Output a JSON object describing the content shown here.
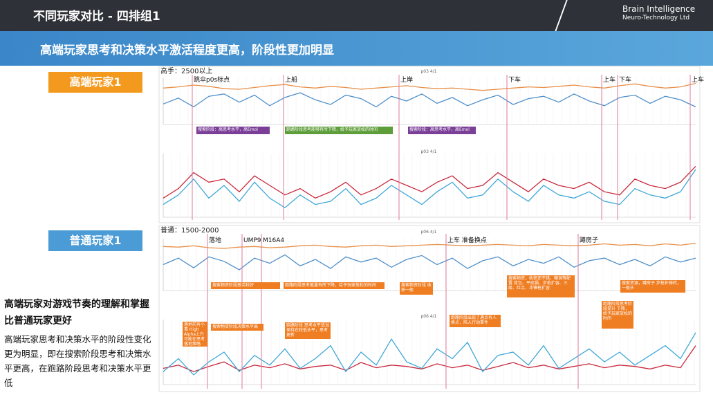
{
  "header": {
    "title": "不同玩家对比 - 四排组1",
    "logo_line1": "Brain Intelligence",
    "logo_line2": "Neuro-Technology Ltd"
  },
  "banner": "高端玩家思考和决策水平激活程度更高，阶段性更加明显",
  "labels": [
    "高端玩家1",
    "普通玩家1"
  ],
  "summary": {
    "heading": "高端玩家对游戏节奏的理解和掌握比普通玩家更好",
    "body": "高端玩家思考和决策水平的阶段性变化更为明显，即在搜索阶段思考和决策水平更高，在跑路阶段思考和决策水平更低"
  },
  "panels": [
    {
      "group": "高手：2500以上",
      "events": [
        "跳伞p0s标点",
        "上船",
        "上岸",
        "下车",
        "上车",
        "下车",
        "上车"
      ],
      "notes": [
        "搜索阶段：高思考水平，高Emol",
        "跑路阶段思考能够有所下降，给予玩家放松的时间",
        "搜索阶段：高思考水平，高Emol"
      ],
      "top": {
        "title": "p03 4/1",
        "ylim": [
          -0.4,
          0.4
        ],
        "series": [
          {
            "color": "#e8904a",
            "values": [
              0.22,
              0.24,
              0.27,
              0.25,
              0.21,
              0.2,
              0.23,
              0.26,
              0.28,
              0.24,
              0.22,
              0.25,
              0.23,
              0.2,
              0.22,
              0.24,
              0.26,
              0.23,
              0.21,
              0.22,
              0.2,
              0.18,
              0.2,
              0.22,
              0.24,
              0.23,
              0.25,
              0.27,
              0.24,
              0.22,
              0.26,
              0.29,
              0.25,
              0.22,
              0.24,
              0.3
            ]
          },
          {
            "color": "#4f8fc9",
            "values": [
              -0.05,
              0.05,
              -0.1,
              0.08,
              0.12,
              -0.02,
              0.1,
              -0.08,
              0.06,
              0.14,
              0.02,
              -0.06,
              0.1,
              0.04,
              -0.1,
              0.08,
              0.0,
              0.12,
              -0.04,
              0.06,
              -0.08,
              0.02,
              0.1,
              -0.06,
              0.04,
              0.08,
              -0.02,
              0.12,
              0.0,
              -0.08,
              0.06,
              0.1,
              -0.04,
              0.08,
              0.02,
              -0.1
            ]
          }
        ]
      },
      "bottom": {
        "title": "p03 4/1",
        "ylim": [
          0,
          100
        ],
        "series": [
          {
            "color": "#c8283c",
            "values": [
              30,
              45,
              70,
              55,
              60,
              40,
              65,
              50,
              35,
              45,
              30,
              40,
              55,
              35,
              45,
              60,
              50,
              40,
              55,
              65,
              45,
              50,
              70,
              55,
              40,
              60,
              50,
              45,
              55,
              40,
              35,
              60,
              50,
              45,
              55,
              80
            ]
          },
          {
            "color": "#3fa7d8",
            "values": [
              20,
              35,
              60,
              30,
              50,
              25,
              55,
              30,
              15,
              35,
              20,
              25,
              45,
              20,
              30,
              50,
              35,
              20,
              40,
              55,
              30,
              35,
              60,
              40,
              25,
              50,
              35,
              30,
              40,
              25,
              20,
              45,
              35,
              30,
              40,
              75
            ]
          }
        ]
      }
    },
    {
      "group": "普通：1500-2000",
      "events": [
        "落地",
        "UMP9",
        "M16A4",
        "上车 准备换点",
        "蹲房子"
      ],
      "notes": [
        "搜索物资阶段激活较好",
        "跑路阶段思考能量有所下降，给予玩家放松的时间",
        "搜索物资阶段 收获一般",
        "搜索物资，收获还不错，嘲讽等配置 背包、平底锅、步枪扩容、三级、红点、冲锋枪扩容",
        "搜索资源，蹲房子 步枪补弹药，一般头",
        "落地前有小事 High Alpha上升 可能在思考落地策略",
        "搜索物资阶段决策水平高",
        "跑路阶段 思考水平适当 保持在较低水平，思考更新",
        "跑路阶段出现了遇点有人换点，陷入行动事件",
        "跑路阶段思考阶段提升 下降，给予玩家放松的时间"
      ],
      "top": {
        "title": "p06 4/1",
        "ylim": [
          -0.4,
          0.4
        ],
        "series": [
          {
            "color": "#e8904a",
            "values": [
              0.28,
              0.27,
              0.29,
              0.26,
              0.25,
              0.27,
              0.28,
              0.26,
              0.27,
              0.29,
              0.3,
              0.28,
              0.27,
              0.29,
              0.3,
              0.28,
              0.29,
              0.3,
              0.31,
              0.3,
              0.29,
              0.3,
              0.31,
              0.3,
              0.29,
              0.31,
              0.3,
              0.29,
              0.3,
              0.32,
              0.3,
              0.31,
              0.29,
              0.32,
              0.3,
              0.33
            ]
          },
          {
            "color": "#4f8fc9",
            "values": [
              0.0,
              0.1,
              -0.05,
              0.12,
              0.05,
              -0.08,
              0.1,
              0.02,
              0.15,
              -0.02,
              0.08,
              -0.06,
              0.12,
              0.04,
              0.1,
              -0.04,
              0.08,
              0.14,
              0.0,
              0.1,
              -0.06,
              0.06,
              0.12,
              -0.02,
              0.08,
              0.02,
              0.12,
              -0.04,
              0.06,
              0.1,
              0.0,
              0.08,
              -0.02,
              0.12,
              0.04,
              0.1
            ]
          }
        ]
      },
      "bottom": {
        "title": "p06 4/1",
        "ylim": [
          0,
          100
        ],
        "series": [
          {
            "color": "#c8283c",
            "values": [
              25,
              30,
              20,
              28,
              35,
              22,
              30,
              26,
              32,
              24,
              28,
              30,
              22,
              34,
              26,
              30,
              28,
              24,
              32,
              26,
              30,
              22,
              28,
              34,
              26,
              30,
              24,
              28,
              32,
              26,
              30,
              28,
              24,
              30,
              26,
              60
            ]
          },
          {
            "color": "#3fa7d8",
            "values": [
              20,
              40,
              15,
              35,
              50,
              20,
              45,
              30,
              55,
              25,
              40,
              60,
              20,
              50,
              30,
              70,
              35,
              25,
              55,
              40,
              65,
              20,
              45,
              50,
              30,
              60,
              25,
              40,
              55,
              35,
              50,
              30,
              45,
              60,
              40,
              80
            ]
          }
        ]
      }
    }
  ]
}
